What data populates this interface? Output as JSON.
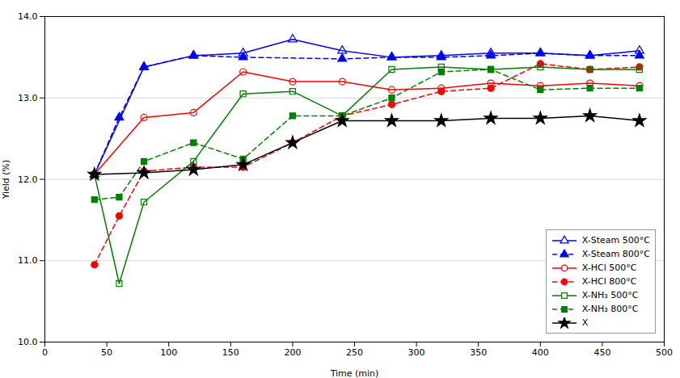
{
  "chart_data": {
    "type": "line",
    "xlabel": "Time (min)",
    "ylabel": "Yield (%)",
    "xlim": [
      0,
      500
    ],
    "ylim": [
      10,
      14
    ],
    "xticks": [
      0,
      50,
      100,
      150,
      200,
      250,
      300,
      350,
      400,
      450,
      500
    ],
    "yticks": [
      10,
      11,
      12,
      13,
      14
    ],
    "grid": "y",
    "legend": "lower right",
    "series": [
      {
        "name": "X-Steam 500°C",
        "color": "blue",
        "line_style": "solid",
        "marker": "triangle-open",
        "x": [
          40,
          80,
          120,
          160,
          200,
          240,
          280,
          320,
          360,
          400,
          440,
          480
        ],
        "values": [
          12.06,
          13.38,
          13.52,
          13.55,
          13.72,
          13.58,
          13.5,
          13.52,
          13.55,
          13.55,
          13.52,
          13.58
        ]
      },
      {
        "name": "X-Steam 800°C",
        "color": "blue",
        "line_style": "dashed",
        "marker": "triangle",
        "x": [
          40,
          60,
          80,
          120,
          160,
          240,
          280,
          320,
          360,
          400,
          440,
          480
        ],
        "values": [
          12.06,
          12.76,
          13.38,
          13.52,
          13.5,
          13.48,
          13.5,
          13.5,
          13.52,
          13.55,
          13.52,
          13.52
        ]
      },
      {
        "name": "X-HCl 500°C",
        "color": "red",
        "line_style": "solid",
        "marker": "circle-open",
        "x": [
          40,
          80,
          120,
          160,
          200,
          240,
          280,
          320,
          360,
          400,
          440,
          480
        ],
        "values": [
          12.06,
          12.76,
          12.82,
          13.32,
          13.2,
          13.2,
          13.1,
          13.12,
          13.18,
          13.15,
          13.18,
          13.15
        ]
      },
      {
        "name": "X-HCl 800°C",
        "color": "red",
        "line_style": "dashed",
        "marker": "circle",
        "x": [
          40,
          60,
          80,
          120,
          160,
          200,
          240,
          280,
          320,
          360,
          400,
          440,
          480
        ],
        "values": [
          10.95,
          11.55,
          12.1,
          12.15,
          12.15,
          12.45,
          12.78,
          12.92,
          13.08,
          13.12,
          13.42,
          13.35,
          13.38
        ]
      },
      {
        "name": "X-NH₃ 500°C",
        "color": "green",
        "line_style": "solid",
        "marker": "square-open",
        "x": [
          40,
          60,
          80,
          120,
          160,
          200,
          240,
          280,
          320,
          360,
          400,
          440,
          480
        ],
        "values": [
          12.06,
          10.72,
          11.72,
          12.22,
          13.05,
          13.08,
          12.78,
          13.35,
          13.38,
          13.35,
          13.38,
          13.35,
          13.35
        ]
      },
      {
        "name": "X-NH₃ 800°C",
        "color": "green",
        "line_style": "dashed",
        "marker": "square",
        "x": [
          40,
          60,
          80,
          120,
          160,
          200,
          240,
          280,
          320,
          360,
          400,
          440,
          480
        ],
        "values": [
          11.75,
          11.78,
          12.22,
          12.45,
          12.25,
          12.78,
          12.78,
          13.0,
          13.32,
          13.35,
          13.1,
          13.12,
          13.12
        ]
      },
      {
        "name": "X",
        "color": "black",
        "line_style": "solid",
        "marker": "star",
        "x": [
          40,
          80,
          120,
          160,
          200,
          240,
          280,
          320,
          360,
          400,
          440,
          480
        ],
        "values": [
          12.06,
          12.08,
          12.12,
          12.18,
          12.45,
          12.72,
          12.72,
          12.72,
          12.75,
          12.75,
          12.78,
          12.72
        ]
      }
    ]
  }
}
